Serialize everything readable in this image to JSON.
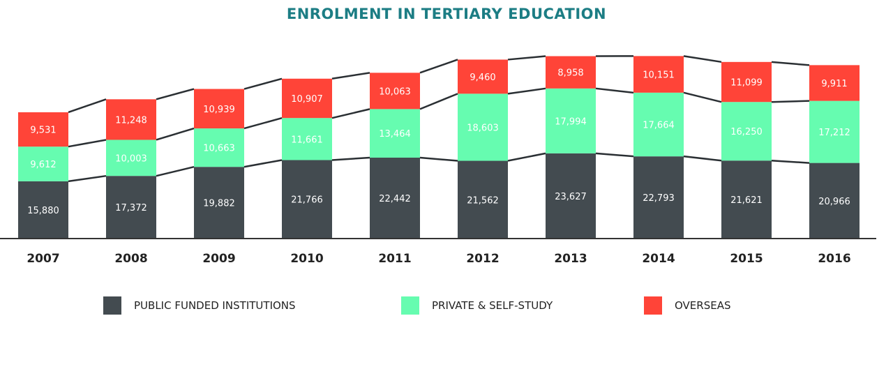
{
  "chart_data": {
    "type": "bar",
    "stacked": true,
    "title": "ENROLMENT IN TERTIARY EDUCATION",
    "categories": [
      "2007",
      "2008",
      "2009",
      "2010",
      "2011",
      "2012",
      "2013",
      "2014",
      "2015",
      "2016"
    ],
    "series": [
      {
        "name": "PUBLIC FUNDED INSTITUTIONS",
        "color": "#434b50",
        "values": [
          15880,
          17372,
          19882,
          21766,
          22442,
          21562,
          23627,
          22793,
          21621,
          20966
        ]
      },
      {
        "name": "PRIVATE & SELF-STUDY",
        "color": "#66fcb0",
        "values": [
          9612,
          10003,
          10663,
          11661,
          13464,
          18603,
          17994,
          17664,
          16250,
          17212
        ]
      },
      {
        "name": "OVERSEAS",
        "color": "#ff4438",
        "values": [
          9531,
          11248,
          10939,
          10907,
          10063,
          9460,
          8958,
          10151,
          11099,
          9911
        ]
      }
    ],
    "data_labels": true,
    "legend_position": "bottom",
    "grid": false
  }
}
